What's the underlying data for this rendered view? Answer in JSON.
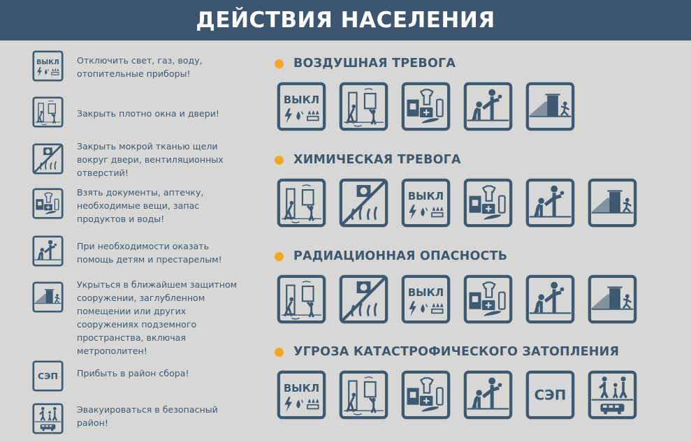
{
  "header": {
    "title": "ДЕЙСТВИЯ НАСЕЛЕНИЯ"
  },
  "colors": {
    "header_bg": "#3d5670",
    "icon": "#3e5a73",
    "accent_dot": "#f6a623",
    "background": "#d7d8d5"
  },
  "icon_labels": {
    "off": "ВЫКЛ",
    "sep": "СЭП"
  },
  "legend": [
    {
      "icon": "off-icon",
      "text": "Отключить свет, газ, воду, отопительные приборы!"
    },
    {
      "icon": "door-window-icon",
      "text": "Закрыть плотно окна и двери!"
    },
    {
      "icon": "seal-vents-icon",
      "text": "Закрыть мокрой тканью щели вокруг двери, вентиляционных отверстий!"
    },
    {
      "icon": "supplies-icon",
      "text": "Взять документы, аптечку, необходимые вещи, запас продуктов и воды!"
    },
    {
      "icon": "help-elderly-icon",
      "text": "При необходимости оказать помощь детям и престарелым!"
    },
    {
      "icon": "shelter-icon",
      "text": "Укрыться в ближайшем защитном сооружении, заглубленном помещении или других сооружениях подземного пространства, включая метрополитен!"
    },
    {
      "icon": "sep-icon",
      "text": "Прибыть в район сбора!"
    },
    {
      "icon": "evacuate-icon",
      "text": "Эвакуироваться в безопасный район!"
    }
  ],
  "sections": [
    {
      "title": "ВОЗДУШНАЯ ТРЕВОГА",
      "icons": [
        "off-icon",
        "door-window-icon",
        "supplies-icon",
        "help-elderly-icon",
        "shelter-icon"
      ]
    },
    {
      "title": "ХИМИЧЕСКАЯ ТРЕВОГА",
      "icons": [
        "door-window-icon",
        "seal-vents-icon",
        "off-icon",
        "supplies-icon",
        "help-elderly-icon",
        "shelter-icon"
      ]
    },
    {
      "title": "РАДИАЦИОННАЯ ОПАСНОСТЬ",
      "icons": [
        "door-window-icon",
        "seal-vents-icon",
        "off-icon",
        "supplies-icon",
        "help-elderly-icon",
        "shelter-icon"
      ]
    },
    {
      "title": "УГРОЗА КАТАСТРОФИЧЕСКОГО ЗАТОПЛЕНИЯ",
      "icons": [
        "off-icon",
        "door-window-icon",
        "supplies-icon",
        "help-elderly-icon",
        "sep-icon",
        "evacuate-icon"
      ]
    }
  ]
}
